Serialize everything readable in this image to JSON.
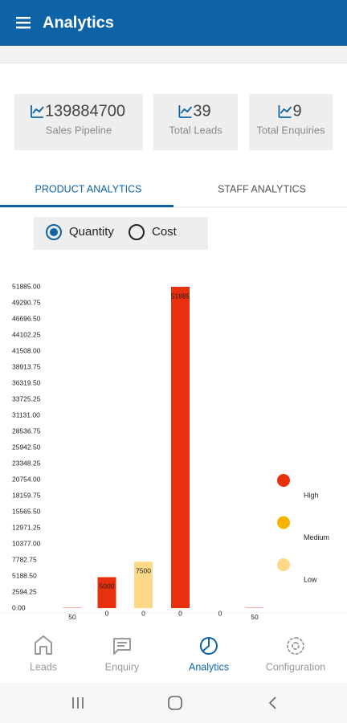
{
  "app_bar": {
    "title": "Analytics"
  },
  "stats": [
    {
      "value": 139884700,
      "label": "Sales Pipeline"
    },
    {
      "value": 39,
      "label": "Total Leads"
    },
    {
      "value": 9,
      "label": "Total Enquiries"
    }
  ],
  "tabs": [
    {
      "label": "PRODUCT ANALYTICS",
      "active": true
    },
    {
      "label": "STAFF ANALYTICS",
      "active": false
    }
  ],
  "radio": [
    {
      "label": "Quantity",
      "selected": true
    },
    {
      "label": "Cost",
      "selected": false
    }
  ],
  "chart_data": {
    "type": "bar",
    "categories": [
      null,
      null,
      null,
      null,
      null,
      null
    ],
    "series": [
      {
        "name": "High",
        "color": "#e8300e",
        "values": [
          50,
          5000,
          null,
          51885,
          null,
          50
        ]
      },
      {
        "name": "Medium",
        "color": "#f5b400",
        "values": [
          null,
          0,
          0,
          0,
          0,
          null
        ]
      },
      {
        "name": "Low",
        "color": "#fdd886",
        "values": [
          null,
          null,
          7500,
          null,
          null,
          null
        ]
      }
    ],
    "ylim": [
      0,
      51885
    ],
    "yticks": [
      {
        "value": 0,
        "label": "0.00"
      },
      {
        "value": 2594.25,
        "label": "2594.25"
      },
      {
        "value": 5188.5,
        "label": "5188.50"
      },
      {
        "value": 7782.75,
        "label": "7782.75"
      },
      {
        "value": 10377,
        "label": "10377.00"
      },
      {
        "value": 12971.25,
        "label": "12971.25"
      },
      {
        "value": 15565.5,
        "label": "15565.50"
      },
      {
        "value": 18159.75,
        "label": "18159.75"
      },
      {
        "value": 20754,
        "label": "20754.00"
      },
      {
        "value": 23348.25,
        "label": "23348.25"
      },
      {
        "value": 25942.5,
        "label": "25942.50"
      },
      {
        "value": 28536.75,
        "label": "28536.75"
      },
      {
        "value": 31131,
        "label": "31131.00"
      },
      {
        "value": 33725.25,
        "label": "33725.25"
      },
      {
        "value": 36319.5,
        "label": "36319.50"
      },
      {
        "value": 38913.75,
        "label": "38913.75"
      },
      {
        "value": 41508,
        "label": "41508.00"
      },
      {
        "value": 44102.25,
        "label": "44102.25"
      },
      {
        "value": 46696.5,
        "label": "46696.50"
      },
      {
        "value": 49290.75,
        "label": "49290.75"
      },
      {
        "value": 51885,
        "label": "51885.00"
      }
    ]
  },
  "bottom_nav": [
    {
      "label": "Leads",
      "active": false
    },
    {
      "label": "Enquiry",
      "active": false
    },
    {
      "label": "Analytics",
      "active": true
    },
    {
      "label": "Configuration",
      "active": false
    }
  ]
}
